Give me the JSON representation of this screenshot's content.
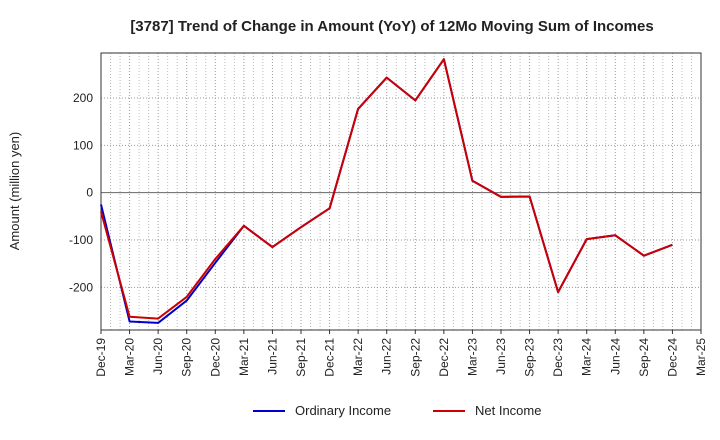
{
  "chart_data": {
    "type": "line",
    "title": "[3787]  Trend of Change in Amount (YoY) of 12Mo Moving Sum of Incomes",
    "xlabel": "",
    "ylabel": "Amount (million yen)",
    "categories": [
      "Dec-19",
      "Mar-20",
      "Jun-20",
      "Sep-20",
      "Dec-20",
      "Mar-21",
      "Jun-21",
      "Sep-21",
      "Dec-21",
      "Mar-22",
      "Jun-22",
      "Sep-22",
      "Dec-22",
      "Mar-23",
      "Jun-23",
      "Sep-23",
      "Dec-23",
      "Mar-24",
      "Jun-24",
      "Sep-24",
      "Dec-24",
      "Mar-25"
    ],
    "yticks": [
      200,
      100,
      0,
      -100,
      -200
    ],
    "ylim": [
      -290,
      295
    ],
    "grid": true,
    "legend_position": "bottom",
    "series": [
      {
        "name": "Ordinary Income",
        "color": "#0000cc",
        "values": [
          -25,
          -272,
          -275,
          -228,
          -148,
          -70,
          -115,
          -73,
          -33,
          177,
          243,
          195,
          282,
          25,
          -9,
          -8,
          -210,
          -98,
          -90,
          -133,
          -110,
          null
        ]
      },
      {
        "name": "Net Income",
        "color": "#cc0000",
        "values": [
          -40,
          -262,
          -266,
          -220,
          -140,
          -70,
          -115,
          -73,
          -33,
          177,
          243,
          195,
          282,
          25,
          -9,
          -8,
          -210,
          -98,
          -90,
          -133,
          -110,
          null
        ]
      }
    ]
  }
}
